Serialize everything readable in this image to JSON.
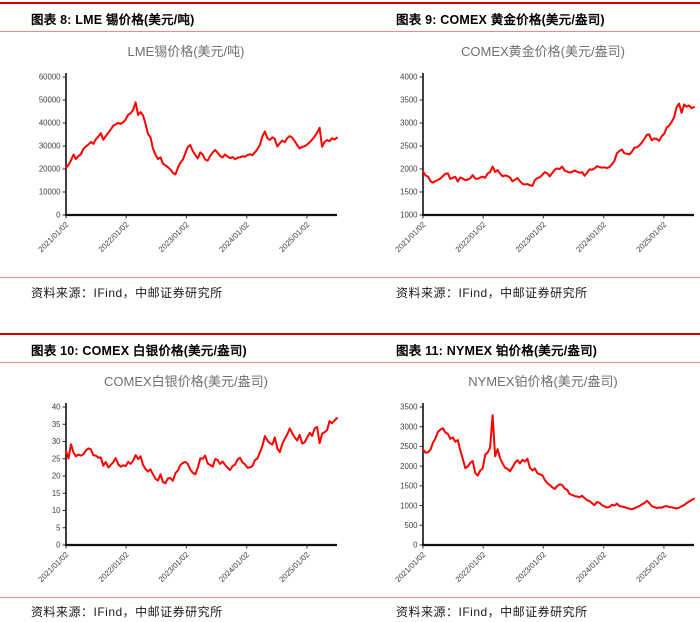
{
  "colors": {
    "line": "#fe0000",
    "rule_strong": "#d40000",
    "rule_light": "#ef8a8a",
    "title_gray": "#6f6f6f",
    "axis_text": "#3f3f3f"
  },
  "figures": [
    {
      "header": "图表 8: LME 锡价格(美元/吨)",
      "source": "资料来源：IFind，中邮证券研究所"
    },
    {
      "header": "图表 9: COMEX 黄金价格(美元/盎司)",
      "source": "资料来源：IFind，中邮证券研究所"
    },
    {
      "header": "图表 10: COMEX 白银价格(美元/盎司)",
      "source": "资料来源：IFind，中邮证券研究所"
    },
    {
      "header": "图表 11: NYMEX 铂价格(美元/盎司)",
      "source": "资料来源：IFind，中邮证券研究所"
    }
  ],
  "chart_data": [
    {
      "type": "line",
      "title": "LME锡价格(美元/吨)",
      "xlabel": "",
      "ylabel": "",
      "series_name": "LME tin price (USD/ton)",
      "ylim": [
        0,
        60000
      ],
      "yticks": [
        "0",
        "10000",
        "20000",
        "30000",
        "40000",
        "50000",
        "60000"
      ],
      "xticks": [
        "2021/01/02",
        "2022/01/02",
        "2023/01/02",
        "2024/01/02",
        "2025/01/02"
      ],
      "xtick_pos": [
        0,
        0.222,
        0.444,
        0.667,
        0.889
      ],
      "grid": false,
      "legend": false,
      "values": [
        20500,
        21800,
        23800,
        26300,
        24300,
        25600,
        26400,
        28800,
        29800,
        30600,
        31800,
        30900,
        32900,
        34100,
        35600,
        32700,
        34300,
        35800,
        37200,
        38800,
        39400,
        40100,
        39600,
        40300,
        41500,
        43600,
        44200,
        45600,
        49000,
        43500,
        44800,
        43200,
        39500,
        35200,
        33800,
        28800,
        26200,
        24300,
        25100,
        22300,
        21600,
        20800,
        19800,
        18300,
        17600,
        20500,
        22800,
        24100,
        26800,
        29600,
        30400,
        27800,
        26100,
        24600,
        27200,
        26300,
        24100,
        23600,
        25700,
        27200,
        28300,
        27100,
        25600,
        25100,
        26300,
        25400,
        24700,
        25200,
        24300,
        24900,
        25100,
        25600,
        25300,
        26100,
        26400,
        26000,
        27300,
        28600,
        30500,
        34200,
        36300,
        33400,
        32600,
        33800,
        33100,
        29800,
        31200,
        32400,
        31600,
        33500,
        34300,
        33600,
        32100,
        30400,
        28900,
        29600,
        29900,
        30700,
        31600,
        32800,
        34100,
        35800,
        37900,
        29700,
        31800,
        32600,
        32100,
        33400,
        32800,
        33600
      ]
    },
    {
      "type": "line",
      "title": "COMEX黄金价格(美元/盎司)",
      "xlabel": "",
      "ylabel": "",
      "series_name": "COMEX gold price (USD/oz)",
      "ylim": [
        1000,
        4000
      ],
      "yticks": [
        "1000",
        "1500",
        "2000",
        "2500",
        "3000",
        "3500",
        "4000"
      ],
      "xticks": [
        "2021/01/02",
        "2022/01/02",
        "2023/01/02",
        "2024/01/02",
        "2025/01/02"
      ],
      "xtick_pos": [
        0,
        0.222,
        0.444,
        0.667,
        0.889
      ],
      "grid": false,
      "legend": false,
      "values": [
        1945,
        1858,
        1838,
        1732,
        1705,
        1738,
        1760,
        1793,
        1845,
        1898,
        1905,
        1782,
        1808,
        1830,
        1728,
        1818,
        1792,
        1756,
        1772,
        1796,
        1868,
        1792,
        1788,
        1812,
        1832,
        1808,
        1902,
        1932,
        2052,
        1938,
        1978,
        1898,
        1842,
        1858,
        1848,
        1812,
        1732,
        1768,
        1802,
        1732,
        1678,
        1662,
        1672,
        1648,
        1632,
        1758,
        1802,
        1822,
        1872,
        1932,
        1902,
        1842,
        1912,
        1988,
        2012,
        1998,
        2052,
        1962,
        1942,
        1922,
        1938,
        1968,
        1942,
        1918,
        1932,
        1852,
        1922,
        1992,
        1982,
        2012,
        2062,
        2042,
        2028,
        2038,
        2022,
        2042,
        2102,
        2178,
        2342,
        2392,
        2422,
        2342,
        2332,
        2318,
        2372,
        2462,
        2472,
        2512,
        2572,
        2652,
        2742,
        2752,
        2622,
        2662,
        2652,
        2612,
        2712,
        2762,
        2902,
        2942,
        3022,
        3122,
        3342,
        3422,
        3222,
        3402,
        3352,
        3382,
        3322,
        3348
      ]
    },
    {
      "type": "line",
      "title": "COMEX白银价格(美元/盎司)",
      "xlabel": "",
      "ylabel": "",
      "series_name": "COMEX silver price (USD/oz)",
      "ylim": [
        0,
        40
      ],
      "yticks": [
        "0",
        "5",
        "10",
        "15",
        "20",
        "25",
        "30",
        "35",
        "40"
      ],
      "xticks": [
        "2021/01/02",
        "2022/01/02",
        "2023/01/02",
        "2024/01/02",
        "2025/01/02"
      ],
      "xtick_pos": [
        0,
        0.222,
        0.444,
        0.667,
        0.889
      ],
      "grid": false,
      "legend": false,
      "values": [
        27.2,
        25.1,
        29.2,
        26.8,
        25.7,
        26.2,
        25.9,
        26.3,
        27.4,
        28.0,
        27.7,
        26.0,
        25.9,
        25.3,
        25.4,
        23.0,
        24.1,
        22.5,
        23.2,
        24.0,
        25.2,
        23.4,
        22.7,
        23.1,
        22.9,
        24.1,
        23.5,
        24.4,
        26.1,
        24.9,
        25.7,
        23.2,
        22.0,
        21.3,
        21.9,
        20.5,
        19.2,
        18.7,
        20.5,
        18.2,
        17.9,
        19.3,
        19.4,
        18.6,
        20.8,
        21.6,
        23.2,
        23.8,
        24.1,
        23.5,
        21.9,
        20.9,
        20.5,
        22.4,
        25.1,
        25.0,
        25.9,
        23.6,
        23.2,
        22.7,
        24.9,
        24.6,
        23.5,
        24.2,
        23.2,
        22.4,
        21.7,
        22.9,
        23.3,
        24.8,
        25.3,
        23.9,
        23.4,
        22.4,
        22.5,
        22.9,
        24.6,
        25.1,
        26.8,
        28.7,
        31.6,
        30.3,
        29.5,
        29.1,
        31.2,
        28.0,
        26.9,
        29.3,
        30.8,
        32.1,
        33.8,
        32.4,
        31.2,
        30.3,
        31.9,
        29.4,
        29.8,
        31.2,
        32.5,
        31.6,
        33.8,
        34.2,
        29.5,
        32.3,
        32.7,
        33.3,
        35.9,
        35.3,
        36.1,
        36.8
      ]
    },
    {
      "type": "line",
      "title": "NYMEX铂价格(美元/盎司)",
      "xlabel": "",
      "ylabel": "",
      "series_name": "NYMEX platinum price (USD/oz)",
      "ylim": [
        0,
        3500
      ],
      "yticks": [
        "0",
        "500",
        "1000",
        "1500",
        "2000",
        "2500",
        "3000",
        "3500"
      ],
      "xticks": [
        "2021/01/02",
        "2022/01/02",
        "2023/01/02",
        "2024/01/02",
        "2025/01/02"
      ],
      "xtick_pos": [
        0,
        0.222,
        0.444,
        0.667,
        0.889
      ],
      "grid": false,
      "legend": false,
      "values": [
        2430,
        2340,
        2350,
        2420,
        2590,
        2700,
        2870,
        2930,
        2960,
        2850,
        2820,
        2690,
        2730,
        2620,
        2660,
        2400,
        2180,
        1950,
        1990,
        2080,
        2130,
        1830,
        1760,
        1890,
        1940,
        2290,
        2340,
        2470,
        3290,
        2250,
        2430,
        2200,
        2070,
        1960,
        1930,
        1870,
        1970,
        2090,
        2150,
        2070,
        2160,
        2120,
        2190,
        1960,
        1890,
        1940,
        1820,
        1790,
        1770,
        1650,
        1570,
        1520,
        1460,
        1420,
        1500,
        1540,
        1520,
        1430,
        1400,
        1290,
        1270,
        1240,
        1230,
        1210,
        1250,
        1190,
        1140,
        1110,
        1060,
        1010,
        1090,
        1070,
        1010,
        980,
        950,
        970,
        1020,
        1000,
        1050,
        990,
        975,
        960,
        935,
        920,
        905,
        930,
        960,
        985,
        1030,
        1060,
        1120,
        1070,
        985,
        960,
        935,
        950,
        945,
        975,
        990,
        965,
        955,
        940,
        925,
        945,
        985,
        1010,
        1060,
        1100,
        1140,
        1175
      ]
    }
  ]
}
